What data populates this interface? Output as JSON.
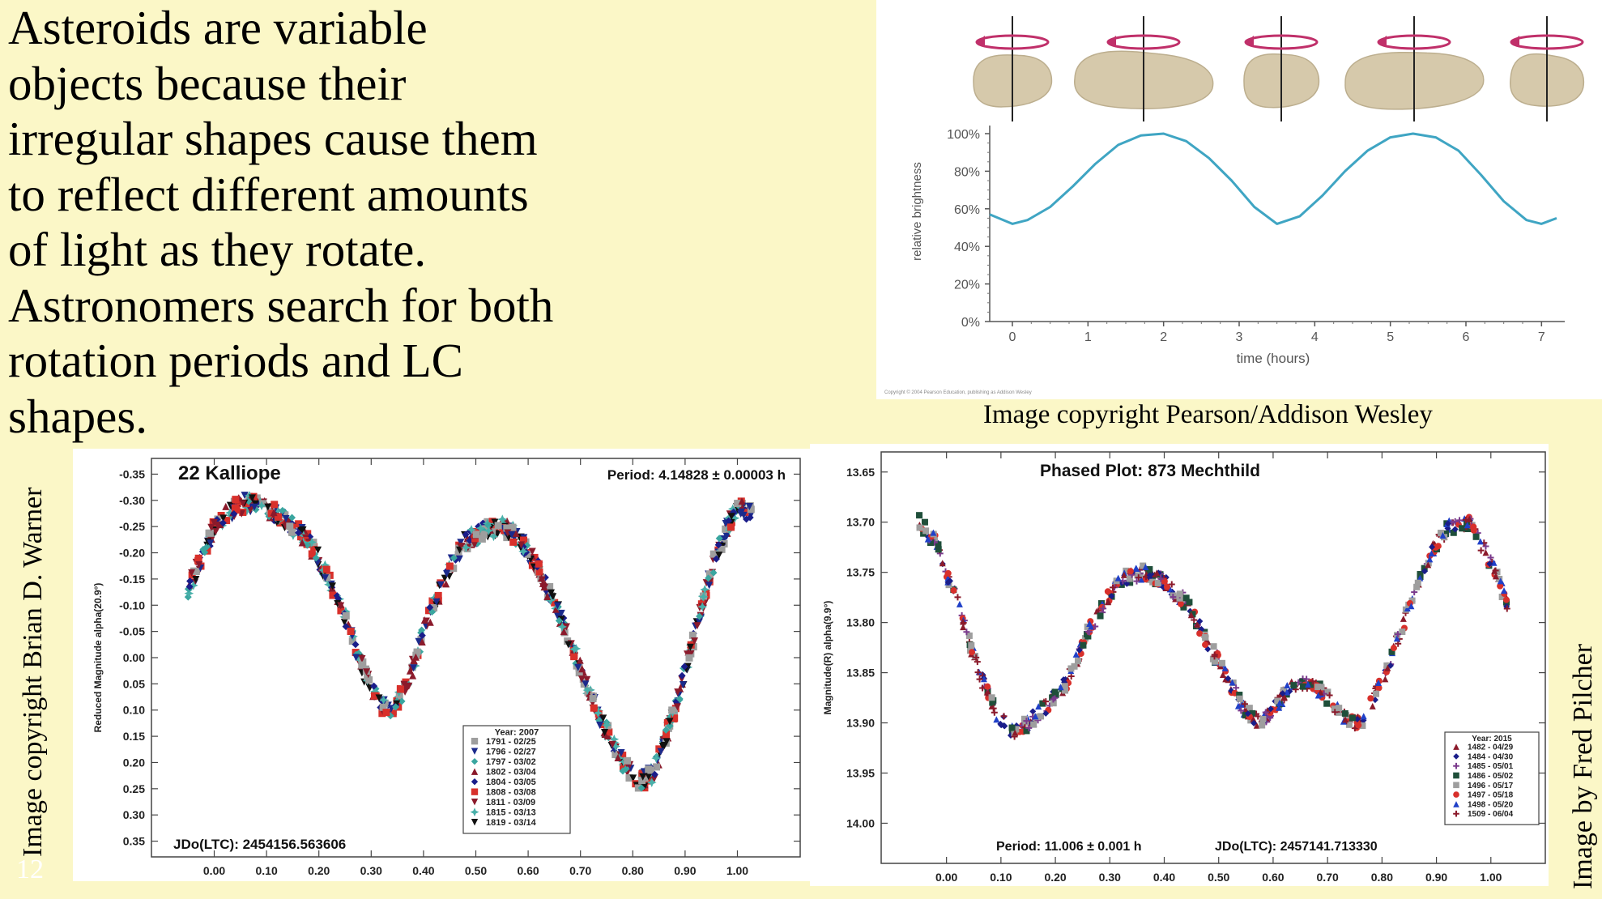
{
  "slide": {
    "text_lines": [
      "Asteroids are variable",
      "objects because their",
      "irregular shapes cause them",
      "to reflect different amounts",
      "of light as they rotate.",
      "Astronomers search for both",
      "rotation periods and LC",
      "shapes."
    ],
    "slide_number": "12",
    "credits": {
      "pearson": "Image copyright Pearson/Addison Wesley",
      "warner": "Image copyright Brian D. Warner",
      "pilcher": "Image by Fred Pilcher"
    }
  },
  "colors": {
    "background": "#fbf7c7",
    "asteroid": "#d6c9ab",
    "rotation_arrow": "#c0306a",
    "brightness_curve": "#3fa5c3"
  },
  "icons": [
    "asteroid-rotation-icon"
  ],
  "chart_data": [
    {
      "type": "line",
      "title": "",
      "xlabel": "time (hours)",
      "ylabel": "relative brightness",
      "x_ticks": [
        "0",
        "1",
        "2",
        "3",
        "4",
        "5",
        "6",
        "7"
      ],
      "y_ticks": [
        "0%",
        "20%",
        "40%",
        "60%",
        "80%",
        "100%"
      ],
      "xlim": [
        -0.3,
        7.2
      ],
      "ylim": [
        0,
        100
      ],
      "grid": false,
      "series": [
        {
          "x": [
            -0.3,
            0,
            0.2,
            0.5,
            0.8,
            1.1,
            1.4,
            1.7,
            2.0,
            2.3,
            2.6,
            2.9,
            3.2,
            3.5,
            3.8,
            4.1,
            4.4,
            4.7,
            5.0,
            5.3,
            5.6,
            5.9,
            6.2,
            6.5,
            6.8,
            7.0,
            7.2
          ],
          "y": [
            57,
            52,
            54,
            61,
            72,
            84,
            94,
            99,
            100,
            96,
            87,
            75,
            61,
            52,
            56,
            67,
            80,
            91,
            98,
            100,
            98,
            91,
            78,
            64,
            54,
            52,
            55
          ]
        }
      ],
      "copyright_note": "Copyright © 2004 Pearson Education, publishing as Addison Wesley"
    },
    {
      "type": "scatter",
      "title": "22 Kalliope",
      "subtitle": "Period: 4.14828 ± 0.00003 h",
      "annotation": "JDo(LTC): 2454156.563606",
      "xlabel": "",
      "ylabel": "Reduced Magnitude alpha(20.9°)",
      "x_ticks": [
        "0.00",
        "0.10",
        "0.20",
        "0.30",
        "0.40",
        "0.50",
        "0.60",
        "0.70",
        "0.80",
        "0.90",
        "1.00"
      ],
      "y_ticks": [
        "-0.35",
        "-0.30",
        "-0.25",
        "-0.20",
        "-0.15",
        "-0.10",
        "-0.05",
        "0.00",
        "0.05",
        "0.10",
        "0.15",
        "0.20",
        "0.25",
        "0.30",
        "0.35"
      ],
      "xlim": [
        -0.12,
        1.12
      ],
      "ylim": [
        -0.38,
        0.38
      ],
      "y_inverted": true,
      "legend_placement": "bottom-right",
      "legend_title": "Year: 2007",
      "legend": [
        {
          "label": "1791 - 02/25",
          "color": "#9e9e9e",
          "marker": "square"
        },
        {
          "label": "1796 - 02/27",
          "color": "#1b2a8c",
          "marker": "triangle-down"
        },
        {
          "label": "1797 - 03/02",
          "color": "#3aa6a0",
          "marker": "diamond"
        },
        {
          "label": "1802 - 03/04",
          "color": "#8b1a2b",
          "marker": "triangle-up"
        },
        {
          "label": "1804 - 03/05",
          "color": "#1a1d8a",
          "marker": "diamond"
        },
        {
          "label": "1808 - 03/08",
          "color": "#d8302b",
          "marker": "square"
        },
        {
          "label": "1811 - 03/09",
          "color": "#8b1a2b",
          "marker": "triangle-down"
        },
        {
          "label": "1815 - 03/13",
          "color": "#49b0aa",
          "marker": "star"
        },
        {
          "label": "1819 - 03/14",
          "color": "#111111",
          "marker": "triangle-down"
        }
      ],
      "curve": {
        "x": [
          -0.05,
          -0.02,
          0.0,
          0.03,
          0.06,
          0.1,
          0.14,
          0.18,
          0.22,
          0.26,
          0.29,
          0.32,
          0.34,
          0.37,
          0.4,
          0.44,
          0.48,
          0.52,
          0.55,
          0.58,
          0.62,
          0.66,
          0.7,
          0.74,
          0.78,
          0.81,
          0.84,
          0.88,
          0.92,
          0.96,
          1.0,
          1.03
        ],
        "y": [
          -0.13,
          -0.2,
          -0.25,
          -0.28,
          -0.295,
          -0.285,
          -0.26,
          -0.22,
          -0.15,
          -0.05,
          0.04,
          0.09,
          0.1,
          0.05,
          -0.05,
          -0.15,
          -0.22,
          -0.245,
          -0.25,
          -0.23,
          -0.17,
          -0.08,
          0.02,
          0.12,
          0.2,
          0.24,
          0.22,
          0.1,
          -0.05,
          -0.2,
          -0.29,
          -0.27
        ]
      }
    },
    {
      "type": "scatter",
      "title": "Phased Plot: 873 Mechthild",
      "annotation_period": "Period: 11.006 ± 0.001 h",
      "annotation_jd": "JDo(LTC): 2457141.713330",
      "xlabel": "",
      "ylabel": "Magnitude(R) alpha(9.9°)",
      "x_ticks": [
        "0.00",
        "0.10",
        "0.20",
        "0.30",
        "0.40",
        "0.50",
        "0.60",
        "0.70",
        "0.80",
        "0.90",
        "1.00"
      ],
      "y_ticks": [
        "13.65",
        "13.70",
        "13.75",
        "13.80",
        "13.85",
        "13.90",
        "13.95",
        "14.00"
      ],
      "xlim": [
        -0.12,
        1.1
      ],
      "ylim": [
        13.63,
        14.04
      ],
      "y_inverted": true,
      "legend_placement": "bottom-right",
      "legend_title": "Year: 2015",
      "legend": [
        {
          "label": "1482 - 04/29",
          "color": "#8b1a2b",
          "marker": "triangle-up"
        },
        {
          "label": "1484 - 04/30",
          "color": "#1a1d8a",
          "marker": "diamond"
        },
        {
          "label": "1485 - 05/01",
          "color": "#7a3a8c",
          "marker": "plus"
        },
        {
          "label": "1486 - 05/02",
          "color": "#1f4f3a",
          "marker": "square"
        },
        {
          "label": "1496 - 05/17",
          "color": "#9e9e9e",
          "marker": "square"
        },
        {
          "label": "1497 - 05/18",
          "color": "#d8302b",
          "marker": "circle"
        },
        {
          "label": "1498 - 05/20",
          "color": "#2040c8",
          "marker": "triangle-up"
        },
        {
          "label": "1509 - 06/04",
          "color": "#8b1a2b",
          "marker": "plus"
        }
      ],
      "curve": {
        "x": [
          -0.05,
          -0.02,
          0.02,
          0.06,
          0.09,
          0.12,
          0.15,
          0.18,
          0.22,
          0.26,
          0.3,
          0.33,
          0.36,
          0.4,
          0.44,
          0.48,
          0.52,
          0.55,
          0.58,
          0.61,
          0.64,
          0.67,
          0.7,
          0.73,
          0.76,
          0.8,
          0.84,
          0.88,
          0.92,
          0.96,
          1.0,
          1.03
        ],
        "y": [
          13.7,
          13.72,
          13.78,
          13.85,
          13.89,
          13.91,
          13.9,
          13.885,
          13.86,
          13.81,
          13.77,
          13.755,
          13.75,
          13.76,
          13.78,
          13.82,
          13.86,
          13.89,
          13.9,
          13.88,
          13.86,
          13.86,
          13.875,
          13.895,
          13.9,
          13.86,
          13.8,
          13.74,
          13.705,
          13.7,
          13.74,
          13.78
        ]
      }
    }
  ]
}
